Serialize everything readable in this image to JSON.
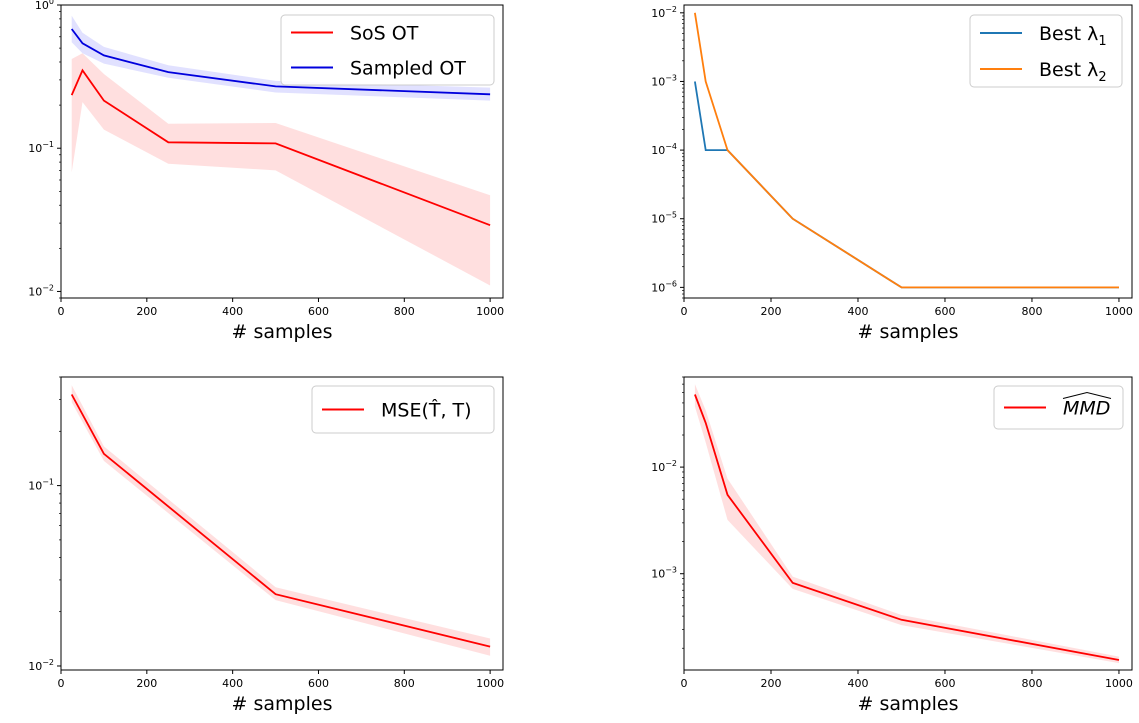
{
  "chart_data": [
    {
      "type": "line",
      "yscale": "log",
      "xlabel": "# samples",
      "ylabel": "",
      "xlim": [
        0,
        1030
      ],
      "ylim": [
        0.009,
        1.0
      ],
      "xticks": [
        0,
        200,
        400,
        600,
        800,
        1000
      ],
      "yticks": [
        {
          "v": 0.01,
          "base": "10",
          "exp": "−2"
        },
        {
          "v": 0.1,
          "base": "10",
          "exp": "−1"
        },
        {
          "v": 1.0,
          "base": "10",
          "exp": "0"
        }
      ],
      "legend_position": "top-right",
      "series": [
        {
          "name": "SoS OT",
          "color": "#ff0000",
          "band_color": "#ffd9d9",
          "x": [
            25,
            50,
            100,
            250,
            500,
            1000
          ],
          "y": [
            0.235,
            0.35,
            0.215,
            0.11,
            0.108,
            0.029
          ],
          "lower": [
            0.068,
            0.21,
            0.135,
            0.078,
            0.07,
            0.011
          ],
          "upper": [
            0.42,
            0.46,
            0.33,
            0.148,
            0.15,
            0.047
          ]
        },
        {
          "name": "Sampled OT",
          "color": "#0000dd",
          "band_color": "#dcdcff",
          "x": [
            25,
            50,
            100,
            250,
            500,
            1000
          ],
          "y": [
            0.68,
            0.54,
            0.445,
            0.34,
            0.27,
            0.238
          ],
          "lower": [
            0.55,
            0.46,
            0.39,
            0.31,
            0.245,
            0.215
          ],
          "upper": [
            0.84,
            0.64,
            0.51,
            0.38,
            0.295,
            0.265
          ]
        }
      ]
    },
    {
      "type": "line",
      "yscale": "log",
      "xlabel": "# samples",
      "ylabel": "",
      "xlim": [
        0,
        1030
      ],
      "ylim": [
        7e-07,
        0.013
      ],
      "xticks": [
        0,
        200,
        400,
        600,
        800,
        1000
      ],
      "yticks": [
        {
          "v": 1e-06,
          "base": "10",
          "exp": "−6"
        },
        {
          "v": 1e-05,
          "base": "10",
          "exp": "−5"
        },
        {
          "v": 0.0001,
          "base": "10",
          "exp": "−4"
        },
        {
          "v": 0.001,
          "base": "10",
          "exp": "−3"
        },
        {
          "v": 0.01,
          "base": "10",
          "exp": "−2"
        }
      ],
      "legend_position": "top-right",
      "series": [
        {
          "name": "Best λ",
          "sub": "1",
          "color": "#1f77b4",
          "x": [
            25,
            50,
            100,
            250,
            500,
            1000
          ],
          "y": [
            0.001,
            0.0001,
            0.0001,
            1e-05,
            1e-06,
            1e-06
          ]
        },
        {
          "name": "Best λ",
          "sub": "2",
          "color": "#ff7f0e",
          "x": [
            25,
            50,
            100,
            250,
            500,
            1000
          ],
          "y": [
            0.01,
            0.001,
            0.0001,
            1e-05,
            1e-06,
            1e-06
          ]
        }
      ]
    },
    {
      "type": "line",
      "yscale": "log",
      "xlabel": "# samples",
      "ylabel": "",
      "xlim": [
        0,
        1030
      ],
      "ylim": [
        0.0095,
        0.4
      ],
      "xticks": [
        0,
        200,
        400,
        600,
        800,
        1000
      ],
      "yticks": [
        {
          "v": 0.01,
          "base": "10",
          "exp": "−2"
        },
        {
          "v": 0.1,
          "base": "10",
          "exp": "−1"
        }
      ],
      "legend_position": "top-right",
      "series": [
        {
          "name": "MSE(T̂, T)",
          "color": "#ff0000",
          "band_color": "#ffd9d9",
          "x": [
            25,
            100,
            500,
            1000
          ],
          "y": [
            0.32,
            0.15,
            0.025,
            0.0128
          ],
          "lower": [
            0.29,
            0.137,
            0.0232,
            0.0114
          ],
          "upper": [
            0.36,
            0.165,
            0.0273,
            0.0142
          ]
        }
      ]
    },
    {
      "type": "line",
      "yscale": "log",
      "xlabel": "# samples",
      "ylabel": "",
      "xlim": [
        0,
        1030
      ],
      "ylim": [
        0.000125,
        0.07
      ],
      "xticks": [
        0,
        200,
        400,
        600,
        800,
        1000
      ],
      "yticks": [
        {
          "v": 0.001,
          "base": "10",
          "exp": "−3"
        },
        {
          "v": 0.01,
          "base": "10",
          "exp": "−2"
        }
      ],
      "legend_position": "top-right",
      "series": [
        {
          "name": "MMD",
          "color": "#ff0000",
          "band_color": "#ffd9d9",
          "x": [
            25,
            50,
            100,
            250,
            500,
            1000
          ],
          "y": [
            0.048,
            0.026,
            0.0055,
            0.00082,
            0.00037,
            0.000155
          ],
          "lower": [
            0.037,
            0.017,
            0.0032,
            0.00072,
            0.00033,
            0.000145
          ],
          "upper": [
            0.06,
            0.034,
            0.0078,
            0.00094,
            0.00041,
            0.000167
          ]
        }
      ]
    }
  ]
}
